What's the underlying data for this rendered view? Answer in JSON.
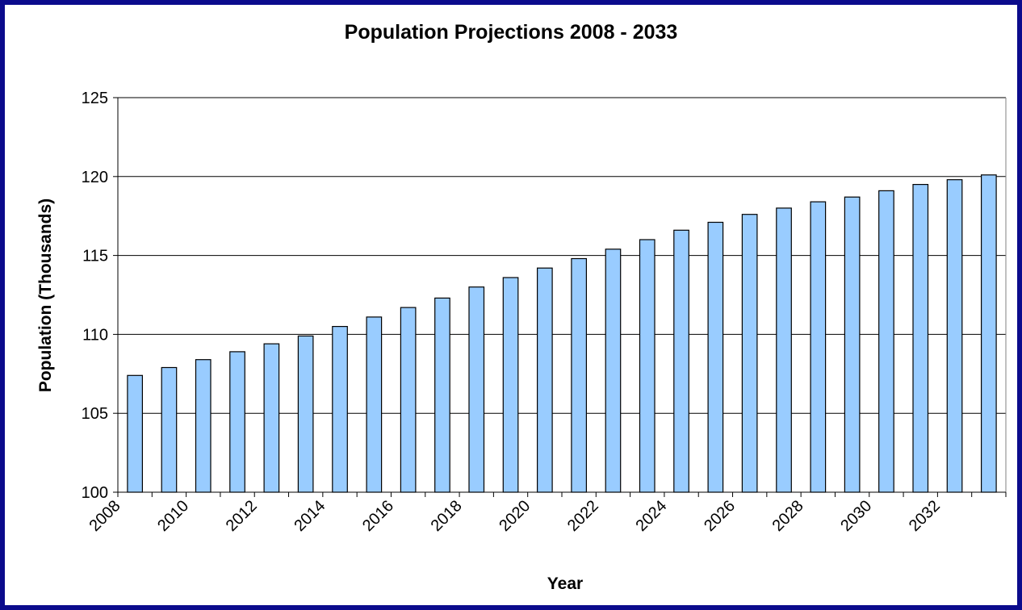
{
  "chart_data": {
    "type": "bar",
    "title": "Population Projections 2008 - 2033",
    "xlabel": "Year",
    "ylabel": "Population (Thousands)",
    "ylim": [
      100,
      125
    ],
    "yticks": [
      100,
      105,
      110,
      115,
      120,
      125
    ],
    "grid": true,
    "legend": "none",
    "categories": [
      "2008",
      "2009",
      "2010",
      "2011",
      "2012",
      "2013",
      "2014",
      "2015",
      "2016",
      "2017",
      "2018",
      "2019",
      "2020",
      "2021",
      "2022",
      "2023",
      "2024",
      "2025",
      "2026",
      "2027",
      "2028",
      "2029",
      "2030",
      "2031",
      "2032",
      "2033"
    ],
    "x_tick_labels": [
      "2008",
      "2010",
      "2012",
      "2014",
      "2016",
      "2018",
      "2020",
      "2022",
      "2024",
      "2026",
      "2028",
      "2030",
      "2032"
    ],
    "series": [
      {
        "values": [
          107.4,
          107.9,
          108.4,
          108.9,
          109.4,
          109.9,
          110.5,
          111.1,
          111.7,
          112.3,
          113.0,
          113.6,
          114.2,
          114.8,
          115.4,
          116.0,
          116.6,
          117.1,
          117.6,
          118.0,
          118.4,
          118.7,
          119.1,
          119.5,
          119.8,
          120.1
        ]
      }
    ],
    "colors": {
      "bar_fill": "#99ccff",
      "bar_stroke": "#000000",
      "frame_border": "#0b0b8c",
      "gridline": "#000000"
    }
  }
}
